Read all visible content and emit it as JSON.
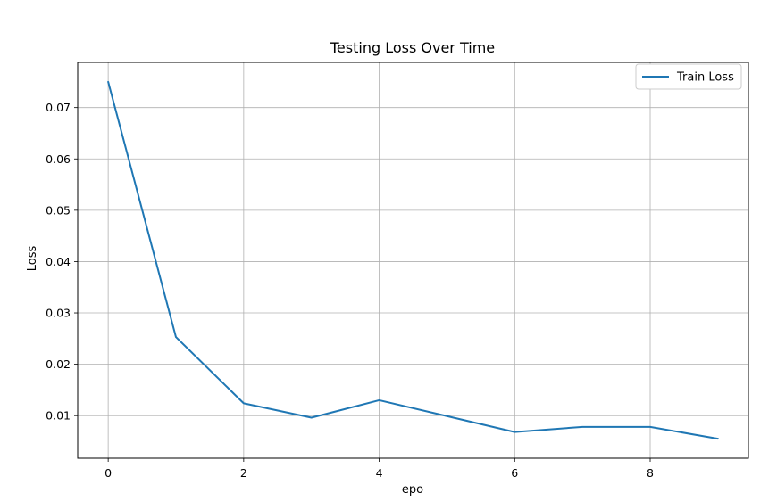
{
  "chart_data": {
    "type": "line",
    "title": "Testing Loss Over Time",
    "xlabel": "epo",
    "ylabel": "Loss",
    "x": [
      0,
      1,
      2,
      3,
      4,
      5,
      6,
      7,
      8,
      9
    ],
    "series": [
      {
        "name": "Train Loss",
        "color": "#1f77b4",
        "values": [
          0.075,
          0.0253,
          0.0124,
          0.0096,
          0.013,
          0.0099,
          0.0068,
          0.0078,
          0.0078,
          0.0055
        ]
      }
    ],
    "xlim": [
      -0.45,
      9.45
    ],
    "ylim": [
      0.0017,
      0.0788
    ],
    "xticks": [
      0,
      2,
      4,
      6,
      8
    ],
    "xtick_labels": [
      "0",
      "2",
      "4",
      "6",
      "8"
    ],
    "yticks": [
      0.01,
      0.02,
      0.03,
      0.04,
      0.05,
      0.06,
      0.07
    ],
    "ytick_labels": [
      "0.01",
      "0.02",
      "0.03",
      "0.04",
      "0.05",
      "0.06",
      "0.07"
    ],
    "grid": true,
    "legend_position": "top-right",
    "colors": {
      "axis": "#000000",
      "grid": "#b0b0b0",
      "background": "#ffffff"
    }
  }
}
